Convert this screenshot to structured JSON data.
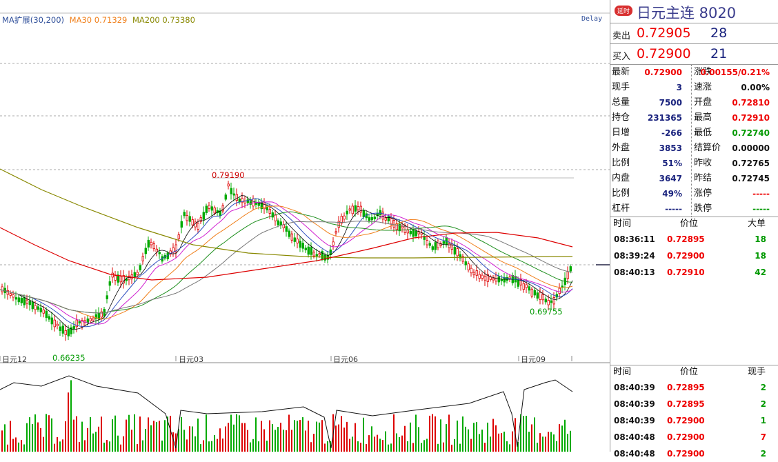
{
  "ma_legend": {
    "ext": "MA扩展(30,200)",
    "ma30": "MA30 0.71329",
    "ma200": "MA200 0.73380",
    "colors": {
      "ext": "#2f4f9a",
      "ma30": "#f07f1a",
      "ma200": "#888800"
    }
  },
  "delay_label": "Delay",
  "chart_annotations": {
    "high": "0.79190",
    "low": "0.66235",
    "low2": "0.69755"
  },
  "x_axis_labels": [
    "日元12",
    "日元03",
    "日元06",
    "日元09"
  ],
  "chart_data": {
    "type": "candlestick",
    "series": [
      {
        "name": "MA30",
        "color": "#f07f1a"
      },
      {
        "name": "MA200",
        "color": "#888800"
      }
    ],
    "annotated_values": {
      "high": 0.7919,
      "low": 0.66235,
      "recent_low": 0.69755
    }
  },
  "side": {
    "badge": "延时",
    "title": "日元主连  8020",
    "ask": {
      "label": "卖出",
      "price": "0.72905",
      "qty": "28"
    },
    "bid": {
      "label": "买入",
      "price": "0.72900",
      "qty": "21"
    },
    "left_stats": [
      {
        "k": "最新",
        "v": "0.72900",
        "color": "red"
      },
      {
        "k": "现手",
        "v": "3",
        "color": "blue"
      },
      {
        "k": "总量",
        "v": "7500",
        "color": "blue"
      },
      {
        "k": "持仓",
        "v": "231365",
        "color": "blue"
      },
      {
        "k": "日增",
        "v": "-266",
        "color": "blue"
      },
      {
        "k": "外盘",
        "v": "3853",
        "color": "blue"
      },
      {
        "k": "比例",
        "v": "51%",
        "color": "blue"
      },
      {
        "k": "内盘",
        "v": "3647",
        "color": "blue"
      },
      {
        "k": "比例",
        "v": "49%",
        "color": "blue"
      },
      {
        "k": "杠杆",
        "v": "-----",
        "color": "blue"
      }
    ],
    "right_stats": [
      {
        "k": "涨跌",
        "v": "0.00155/0.21%",
        "color": "red"
      },
      {
        "k": "速涨",
        "v": "0.00%",
        "color": "black"
      },
      {
        "k": "开盘",
        "v": "0.72810",
        "color": "red"
      },
      {
        "k": "最高",
        "v": "0.72910",
        "color": "red"
      },
      {
        "k": "最低",
        "v": "0.72740",
        "color": "green"
      },
      {
        "k": "结算价",
        "v": "0.00000",
        "color": "black"
      },
      {
        "k": "昨收",
        "v": "0.72765",
        "color": "black"
      },
      {
        "k": "昨结",
        "v": "0.72745",
        "color": "black"
      },
      {
        "k": "涨停",
        "v": "-----",
        "color": "red"
      },
      {
        "k": "跌停",
        "v": "-----",
        "color": "green"
      }
    ],
    "big_orders": {
      "headers": [
        "时间",
        "价位",
        "大单"
      ],
      "rows": [
        {
          "time": "08:36:11",
          "price": "0.72895",
          "qty": "18"
        },
        {
          "time": "08:39:24",
          "price": "0.72900",
          "qty": "18"
        },
        {
          "time": "08:40:13",
          "price": "0.72910",
          "qty": "42"
        }
      ]
    },
    "ticks": {
      "headers": [
        "时间",
        "价位",
        "现手"
      ],
      "rows": [
        {
          "time": "08:40:39",
          "price": "0.72895",
          "qty": "2"
        },
        {
          "time": "08:40:39",
          "price": "0.72895",
          "qty": "2"
        },
        {
          "time": "08:40:39",
          "price": "0.72900",
          "qty": "1"
        },
        {
          "time": "08:40:48",
          "price": "0.72900",
          "qty": "7"
        },
        {
          "time": "08:40:48",
          "price": "0.72900",
          "qty": "2"
        }
      ]
    }
  }
}
